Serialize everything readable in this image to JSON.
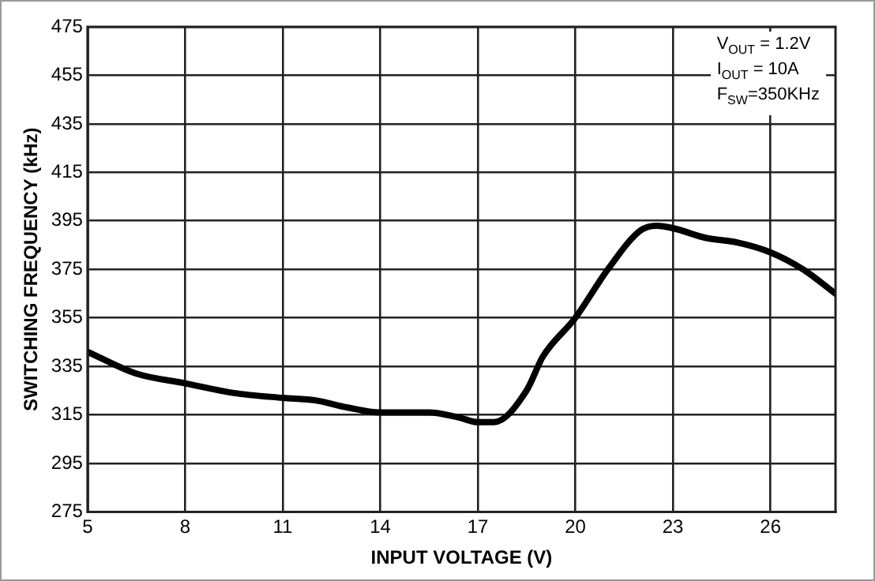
{
  "chart_data": {
    "type": "line",
    "xlabel": "INPUT VOLTAGE (V)",
    "ylabel": "SWITCHING FREQUENCY (kHz)",
    "annotations": [
      "V$_{OUT}$ = 1.2V",
      "I$_{OUT}$ = 10A",
      "F$_{SW}$=350KHz"
    ],
    "x": [
      5,
      6.5,
      8,
      9.5,
      11,
      12,
      13,
      14,
      15.5,
      16.4,
      17,
      17.5,
      18.5,
      19,
      20,
      21,
      22,
      22.5,
      23,
      24,
      25,
      26,
      27,
      28
    ],
    "series": [
      {
        "color": "#000000",
        "values": [
          341,
          332,
          328,
          324,
          322,
          321,
          318,
          316,
          316,
          314,
          312,
          312,
          325,
          339,
          355,
          375,
          391,
          393,
          392,
          388,
          386,
          382,
          375,
          365
        ]
      }
    ],
    "xlim": [
      5,
      28
    ],
    "xticks": [
      5,
      8,
      11,
      14,
      17,
      20,
      23,
      26
    ],
    "ylim": [
      275,
      475
    ],
    "yticks": [
      275,
      295,
      315,
      335,
      355,
      375,
      395,
      415,
      435,
      455,
      475
    ],
    "grid": true,
    "legend": false,
    "marker": "none",
    "line_style": "solid"
  }
}
